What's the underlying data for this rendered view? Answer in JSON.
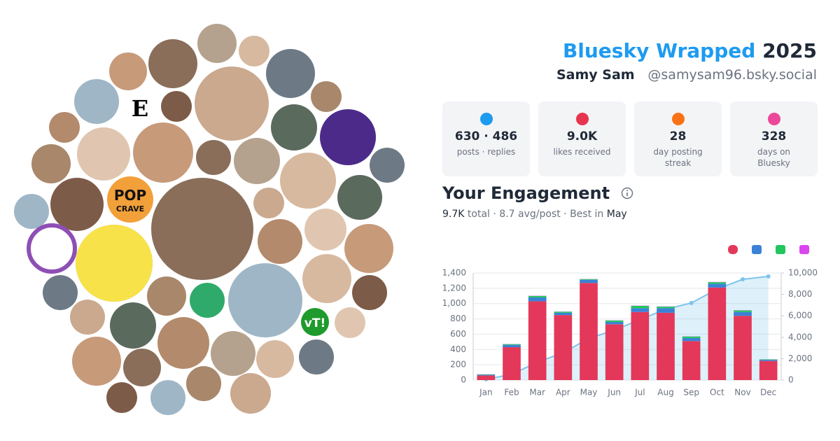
{
  "header": {
    "title": "Bluesky Wrapped",
    "year": "2025",
    "name": "Samy Sam",
    "handle": "@samysam96.bsky.social"
  },
  "avatar_logos": [
    "E",
    "POP",
    "CRAVE",
    "vT!"
  ],
  "stats": [
    {
      "value": "630 · 486",
      "label": "posts · replies",
      "color": "#1d9bf0"
    },
    {
      "value": "9.0K",
      "label": "likes received",
      "color": "#e8354f"
    },
    {
      "value": "28",
      "label": "day posting streak",
      "color": "#f97316"
    },
    {
      "value": "328",
      "label": "days on Bluesky",
      "color": "#ec4899"
    }
  ],
  "engagement": {
    "title": "Your Engagement",
    "total": "9.7K",
    "total_label": "total",
    "avg": "8.7 avg/post",
    "best_label": "Best in",
    "best": "May"
  },
  "chart_data": {
    "type": "bar",
    "stacked": true,
    "grid": true,
    "categories": [
      "Jan",
      "Feb",
      "Mar",
      "Apr",
      "May",
      "Jun",
      "Jul",
      "Aug",
      "Sep",
      "Oct",
      "Nov",
      "Dec"
    ],
    "series": [
      {
        "color": "#e3385a",
        "values": [
          60,
          430,
          1030,
          850,
          1270,
          730,
          890,
          880,
          510,
          1210,
          840,
          250
        ]
      },
      {
        "color": "#3b82d6",
        "values": [
          10,
          30,
          50,
          30,
          40,
          30,
          50,
          60,
          40,
          50,
          50,
          15
        ]
      },
      {
        "color": "#22c55e",
        "values": [
          5,
          10,
          20,
          15,
          10,
          20,
          30,
          20,
          20,
          20,
          20,
          5
        ]
      },
      {
        "color": "#d946ef",
        "values": [
          2,
          2,
          3,
          2,
          2,
          2,
          3,
          3,
          2,
          3,
          3,
          1
        ]
      },
      {
        "type": "line",
        "axis": "y2",
        "color": "#7cc4ec",
        "values": [
          70,
          550,
          1660,
          2560,
          3880,
          4670,
          5650,
          6620,
          7200,
          8490,
          9410,
          9680
        ]
      }
    ],
    "ylim": [
      0,
      1400
    ],
    "yticks": [
      0,
      200,
      400,
      600,
      800,
      {
        "value": 1000,
        "label": "1,000"
      },
      {
        "value": 1200,
        "label": "1,200"
      },
      {
        "value": 1400,
        "label": "1,400"
      }
    ],
    "y2lim": [
      0,
      10000
    ],
    "y2ticks": [
      0,
      {
        "value": 2000,
        "label": "2,000"
      },
      {
        "value": 4000,
        "label": "4,000"
      },
      {
        "value": 6000,
        "label": "6,000"
      },
      {
        "value": 8000,
        "label": "8,000"
      },
      {
        "value": 10000,
        "label": "10,000"
      }
    ]
  }
}
